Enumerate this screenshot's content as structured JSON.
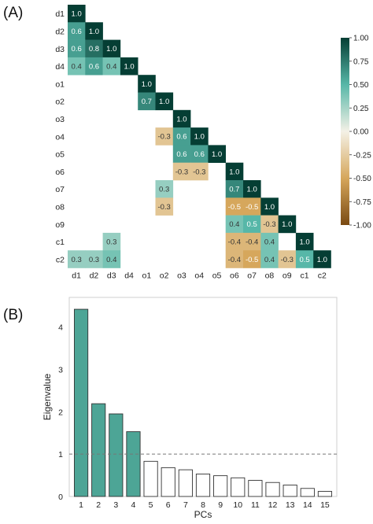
{
  "panels": {
    "a_label": "(A)",
    "b_label": "(B)"
  },
  "chart_data": [
    {
      "type": "heatmap",
      "title": "",
      "variables": [
        "d1",
        "d2",
        "d3",
        "d4",
        "o1",
        "o2",
        "o3",
        "o4",
        "o5",
        "o6",
        "o7",
        "o8",
        "o9",
        "c1",
        "c2"
      ],
      "triangle": "lower",
      "cells": [
        {
          "row": "d1",
          "col": "d1",
          "value": 1.0
        },
        {
          "row": "d2",
          "col": "d1",
          "value": 0.6
        },
        {
          "row": "d2",
          "col": "d2",
          "value": 1.0
        },
        {
          "row": "d3",
          "col": "d1",
          "value": 0.6
        },
        {
          "row": "d3",
          "col": "d2",
          "value": 0.8
        },
        {
          "row": "d3",
          "col": "d3",
          "value": 1.0
        },
        {
          "row": "d4",
          "col": "d1",
          "value": 0.4
        },
        {
          "row": "d4",
          "col": "d2",
          "value": 0.6
        },
        {
          "row": "d4",
          "col": "d3",
          "value": 0.4
        },
        {
          "row": "d4",
          "col": "d4",
          "value": 1.0
        },
        {
          "row": "o1",
          "col": "o1",
          "value": 1.0
        },
        {
          "row": "o2",
          "col": "o1",
          "value": 0.7
        },
        {
          "row": "o2",
          "col": "o2",
          "value": 1.0
        },
        {
          "row": "o3",
          "col": "o3",
          "value": 1.0
        },
        {
          "row": "o4",
          "col": "o2",
          "value": -0.3
        },
        {
          "row": "o4",
          "col": "o3",
          "value": 0.6
        },
        {
          "row": "o4",
          "col": "o4",
          "value": 1.0
        },
        {
          "row": "o5",
          "col": "o3",
          "value": 0.6
        },
        {
          "row": "o5",
          "col": "o4",
          "value": 0.6
        },
        {
          "row": "o5",
          "col": "o5",
          "value": 1.0
        },
        {
          "row": "o6",
          "col": "o3",
          "value": -0.3
        },
        {
          "row": "o6",
          "col": "o4",
          "value": -0.3
        },
        {
          "row": "o6",
          "col": "o6",
          "value": 1.0
        },
        {
          "row": "o7",
          "col": "o2",
          "value": 0.3
        },
        {
          "row": "o7",
          "col": "o6",
          "value": 0.7
        },
        {
          "row": "o7",
          "col": "o7",
          "value": 1.0
        },
        {
          "row": "o8",
          "col": "o2",
          "value": -0.3
        },
        {
          "row": "o8",
          "col": "o6",
          "value": -0.5
        },
        {
          "row": "o8",
          "col": "o7",
          "value": -0.5
        },
        {
          "row": "o8",
          "col": "o8",
          "value": 1.0
        },
        {
          "row": "o9",
          "col": "o6",
          "value": 0.4
        },
        {
          "row": "o9",
          "col": "o7",
          "value": 0.5
        },
        {
          "row": "o9",
          "col": "o8",
          "value": -0.3
        },
        {
          "row": "o9",
          "col": "o9",
          "value": 1.0
        },
        {
          "row": "c1",
          "col": "d3",
          "value": 0.3
        },
        {
          "row": "c1",
          "col": "o6",
          "value": -0.4
        },
        {
          "row": "c1",
          "col": "o7",
          "value": -0.4
        },
        {
          "row": "c1",
          "col": "o8",
          "value": 0.4
        },
        {
          "row": "c1",
          "col": "c1",
          "value": 1.0
        },
        {
          "row": "c2",
          "col": "d1",
          "value": 0.3
        },
        {
          "row": "c2",
          "col": "d2",
          "value": 0.3
        },
        {
          "row": "c2",
          "col": "d3",
          "value": 0.4
        },
        {
          "row": "c2",
          "col": "o6",
          "value": -0.4
        },
        {
          "row": "c2",
          "col": "o7",
          "value": -0.5
        },
        {
          "row": "c2",
          "col": "o8",
          "value": 0.4
        },
        {
          "row": "c2",
          "col": "o9",
          "value": -0.3
        },
        {
          "row": "c2",
          "col": "c1",
          "value": 0.5
        },
        {
          "row": "c2",
          "col": "c2",
          "value": 1.0
        }
      ],
      "colorbar": {
        "min": -1.0,
        "max": 1.0,
        "ticks": [
          "1.00",
          "0.75",
          "0.50",
          "0.25",
          "0.00",
          "-0.25",
          "-0.50",
          "-0.75",
          "-1.00"
        ],
        "colormap": "BrBG",
        "colors": {
          "negative": "#7a4a12",
          "neutral": "#f4f1e6",
          "positive": "#053e34"
        }
      }
    },
    {
      "type": "bar",
      "title": "",
      "xlabel": "PCs",
      "ylabel": "Eigenvalue",
      "categories": [
        "1",
        "2",
        "3",
        "4",
        "5",
        "6",
        "7",
        "8",
        "9",
        "10",
        "11",
        "12",
        "13",
        "14",
        "15"
      ],
      "values": [
        4.42,
        2.19,
        1.95,
        1.53,
        0.83,
        0.68,
        0.63,
        0.53,
        0.49,
        0.44,
        0.38,
        0.33,
        0.27,
        0.19,
        0.12
      ],
      "ylim": [
        0,
        4.7
      ],
      "yticks": [
        "0",
        "1",
        "2",
        "3",
        "4"
      ],
      "reference_line": {
        "y": 1,
        "style": "dashed"
      },
      "retained_components": 4,
      "colors": {
        "retained": "#4da596",
        "other": "#ffffff",
        "edge": "#333333"
      },
      "grid": false
    }
  ]
}
